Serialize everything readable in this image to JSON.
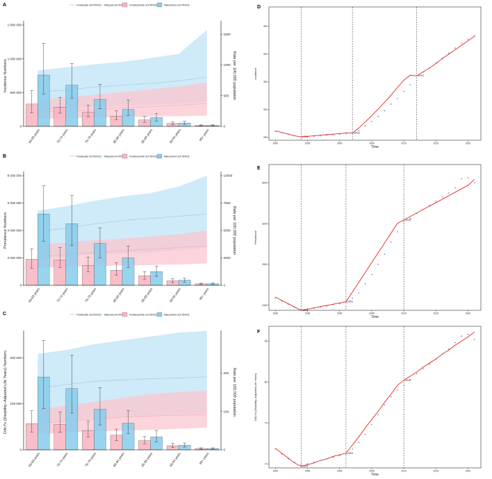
{
  "colors": {
    "female": "#f9b3bf",
    "male": "#87cdec",
    "female_band": "#fbc6cf",
    "male_band": "#bfe3f5",
    "fit_line": "#e8231f",
    "axis": "#333333",
    "point": "#5b6fb4"
  },
  "legend_labels": [
    "Female(rate and 95%UI)",
    "Male(rate and 95%UI)",
    "Female(number and 95%UI)",
    "Male(number and 95%UI)"
  ],
  "chart_data": [
    {
      "panel": "A",
      "type": "bar",
      "categories": [
        "65-69 years",
        "70-74 years",
        "75-79 years",
        "80-84 years",
        "85-89 years",
        "90-94 years",
        "95+ years"
      ],
      "ylabel": "Incidence Numbers",
      "y2label": "Rate per 100,000 population",
      "ylim": [
        0,
        1500000
      ],
      "yticks": [
        0,
        500000,
        1000000,
        1500000
      ],
      "yticklabels": [
        "0",
        "500 000",
        "1 000 000",
        "1 500 000"
      ],
      "y2lim": [
        0,
        1650
      ],
      "y2ticks": [
        0,
        500,
        1000,
        1500
      ],
      "series": [
        {
          "name": "Female(number and 95%UI)",
          "values": [
            330000,
            285000,
            210000,
            150000,
            95000,
            45000,
            15000
          ],
          "lower": [
            200000,
            195000,
            140000,
            100000,
            60000,
            25000,
            8000
          ],
          "upper": [
            530000,
            430000,
            310000,
            230000,
            145000,
            65000,
            22000
          ]
        },
        {
          "name": "Male(number and 95%UI)",
          "values": [
            760000,
            610000,
            400000,
            250000,
            130000,
            50000,
            15000
          ],
          "lower": [
            480000,
            420000,
            260000,
            160000,
            80000,
            30000,
            8000
          ],
          "upper": [
            1230000,
            930000,
            620000,
            390000,
            190000,
            75000,
            25000
          ]
        },
        {
          "name": "Female(rate and 95%UI)",
          "values": [
            230,
            255,
            275,
            300,
            320,
            345,
            370
          ],
          "lower": [
            120,
            135,
            145,
            150,
            160,
            165,
            175
          ],
          "upper": [
            430,
            470,
            510,
            560,
            600,
            650,
            710
          ]
        },
        {
          "name": "Male(rate and 95%UI)",
          "values": [
            560,
            590,
            640,
            670,
            700,
            740,
            800
          ],
          "lower": [
            250,
            280,
            310,
            330,
            350,
            370,
            400
          ],
          "upper": [
            910,
            960,
            1010,
            1050,
            1110,
            1180,
            1570
          ]
        }
      ]
    },
    {
      "panel": "B",
      "type": "bar",
      "categories": [
        "65-69 years",
        "70-74 years",
        "75-79 years",
        "80-84 years",
        "85-89 years",
        "90-94 years",
        "95+ years"
      ],
      "ylabel": "Prevalence Numbers",
      "y2label": "Rate per 100,000 population",
      "ylim": [
        0,
        8000000
      ],
      "yticks": [
        0,
        2000000,
        4000000,
        6000000,
        8000000
      ],
      "yticklabels": [
        "0",
        "2 000 000",
        "4 000 000",
        "6 000 000",
        "8 000 000"
      ],
      "y2lim": [
        0,
        10000
      ],
      "y2ticks": [
        0,
        2500,
        5000,
        7500,
        10000
      ],
      "series": [
        {
          "name": "Female(number and 95%UI)",
          "values": [
            1900000,
            1850000,
            1450000,
            1100000,
            700000,
            330000,
            110000
          ],
          "lower": [
            1250000,
            1300000,
            1000000,
            750000,
            450000,
            200000,
            60000
          ],
          "upper": [
            2650000,
            2750000,
            2050000,
            1650000,
            1000000,
            480000,
            160000
          ]
        },
        {
          "name": "Male(number and 95%UI)",
          "values": [
            5200000,
            4500000,
            3050000,
            2000000,
            1000000,
            380000,
            120000
          ],
          "lower": [
            3200000,
            2900000,
            2000000,
            1300000,
            650000,
            230000,
            70000
          ],
          "upper": [
            7250000,
            6550000,
            4200000,
            2850000,
            1400000,
            520000,
            170000
          ]
        },
        {
          "name": "Female(rate and 95%UI)",
          "values": [
            2600,
            2800,
            3000,
            3150,
            3300,
            3450,
            3600
          ],
          "lower": [
            1600,
            1700,
            1750,
            1800,
            1850,
            1900,
            2000
          ],
          "upper": [
            3700,
            3900,
            4100,
            4250,
            4450,
            4650,
            5000
          ]
        },
        {
          "name": "Male(rate and 95%UI)",
          "values": [
            4900,
            5200,
            5600,
            5900,
            6100,
            6300,
            6500
          ],
          "lower": [
            2300,
            2600,
            2800,
            2900,
            3000,
            3200,
            3400
          ],
          "upper": [
            6800,
            7200,
            7700,
            8100,
            8400,
            9000,
            10000
          ]
        }
      ]
    },
    {
      "panel": "C",
      "type": "bar",
      "categories": [
        "65-69 years",
        "70-74 years",
        "75-79 years",
        "80-84 years",
        "85-89 years",
        "90-94 years",
        "95+ years"
      ],
      "ylabel": "DALYs (Disability–Adjusted Life Years) Numbers",
      "y2label": "Rate per 100,000 population",
      "ylim": [
        0,
        250000
      ],
      "yticks": [
        0,
        100000,
        200000
      ],
      "yticklabels": [
        "0",
        "100 000",
        "200 000"
      ],
      "y2lim": [
        0,
        300
      ],
      "y2ticks": [
        0,
        100,
        200
      ],
      "series": [
        {
          "name": "Female(number and 95%UI)",
          "values": [
            57000,
            55000,
            42000,
            32000,
            20000,
            9000,
            3000
          ],
          "lower": [
            38000,
            38000,
            28000,
            20000,
            13000,
            5000,
            1500
          ],
          "upper": [
            85000,
            82000,
            62000,
            45000,
            29000,
            14000,
            4500
          ]
        },
        {
          "name": "Male(number and 95%UI)",
          "values": [
            158000,
            133000,
            88000,
            58000,
            28000,
            10000,
            3000
          ],
          "lower": [
            90000,
            80000,
            54000,
            35000,
            17000,
            6000,
            1500
          ],
          "upper": [
            237000,
            205000,
            135000,
            85000,
            42000,
            15000,
            4500
          ]
        },
        {
          "name": "Female(rate and 95%UI)",
          "values": [
            68,
            75,
            80,
            85,
            88,
            90,
            92
          ],
          "lower": [
            40,
            45,
            48,
            50,
            52,
            55,
            58
          ],
          "upper": [
            105,
            115,
            125,
            135,
            145,
            150,
            155
          ]
        },
        {
          "name": "Male(rate and 95%UI)",
          "values": [
            160,
            170,
            178,
            182,
            185,
            187,
            190
          ],
          "lower": [
            70,
            75,
            82,
            85,
            88,
            92,
            95
          ],
          "upper": [
            250,
            260,
            275,
            285,
            295,
            305,
            310
          ]
        }
      ]
    },
    {
      "panel": "D",
      "type": "line",
      "xlabel": "Time",
      "ylabel": "Incidence",
      "xlim": [
        1989,
        2022
      ],
      "xticks": [
        1990,
        1995,
        2000,
        2005,
        2010,
        2015,
        2020
      ],
      "ylim": [
        245,
        485
      ],
      "yticks": [
        250,
        300,
        350,
        400,
        450
      ],
      "breakpoints": [
        1994,
        2002,
        2012
      ],
      "x": [
        1990,
        1991,
        1992,
        1993,
        1994,
        1995,
        1996,
        1997,
        1998,
        1999,
        2000,
        2001,
        2002,
        2003,
        2004,
        2005,
        2006,
        2007,
        2008,
        2009,
        2010,
        2011,
        2012,
        2013,
        2014,
        2015,
        2016,
        2017,
        2018,
        2019,
        2020,
        2021
      ],
      "y": [
        261,
        259,
        256,
        253,
        251,
        251,
        252,
        253,
        254,
        255,
        256,
        257,
        258,
        262,
        271,
        279,
        288,
        298,
        310,
        320,
        333,
        345,
        361,
        368,
        375,
        384,
        393,
        402,
        411,
        420,
        427,
        433
      ],
      "fit": [
        262,
        259,
        256,
        253,
        251,
        252,
        253,
        254,
        255,
        256,
        257,
        258,
        258,
        267,
        278,
        289,
        301,
        313,
        326,
        340,
        353,
        362,
        361,
        368,
        375,
        383,
        392,
        400,
        408,
        416,
        424,
        432
      ]
    },
    {
      "panel": "E",
      "type": "line",
      "xlabel": "Time",
      "ylabel": "Prevalence",
      "xlim": [
        1989,
        2022
      ],
      "xticks": [
        1990,
        1995,
        2000,
        2005,
        2010,
        2015,
        2020
      ],
      "ylim": [
        2350,
        3780
      ],
      "yticks": [
        2400,
        2800,
        3200,
        3600
      ],
      "breakpoints": [
        1994,
        2001,
        2010
      ],
      "x": [
        1990,
        1991,
        1992,
        1993,
        1994,
        1995,
        1996,
        1997,
        1998,
        1999,
        2000,
        2001,
        2002,
        2003,
        2004,
        2005,
        2006,
        2007,
        2008,
        2009,
        2010,
        2011,
        2012,
        2013,
        2014,
        2015,
        2016,
        2017,
        2018,
        2019,
        2020,
        2021
      ],
      "y": [
        2470,
        2440,
        2410,
        2380,
        2355,
        2360,
        2370,
        2380,
        2390,
        2405,
        2415,
        2430,
        2470,
        2520,
        2610,
        2700,
        2800,
        2900,
        3020,
        3120,
        3220,
        3250,
        3300,
        3340,
        3380,
        3420,
        3460,
        3500,
        3550,
        3640,
        3650,
        3600
      ],
      "fit": [
        2480,
        2447,
        2415,
        2382,
        2350,
        2362,
        2374,
        2386,
        2398,
        2410,
        2422,
        2434,
        2530,
        2626,
        2722,
        2818,
        2914,
        3010,
        3106,
        3202,
        3236,
        3270,
        3304,
        3338,
        3372,
        3406,
        3440,
        3474,
        3508,
        3542,
        3576,
        3634
      ]
    },
    {
      "panel": "F",
      "type": "line",
      "xlabel": "Time",
      "ylabel": "DALYs (Disability–Adjusted Life Years)",
      "xlim": [
        1989,
        2022
      ],
      "xticks": [
        1990,
        1995,
        2000,
        2005,
        2010,
        2015,
        2020
      ],
      "ylim": [
        69.5,
        86.8
      ],
      "yticks": [
        70,
        75,
        80,
        85
      ],
      "breakpoints": [
        1994,
        2001,
        2010
      ],
      "x": [
        1990,
        1991,
        1992,
        1993,
        1994,
        1995,
        1996,
        1997,
        1998,
        1999,
        2000,
        2001,
        2002,
        2003,
        2004,
        2005,
        2006,
        2007,
        2008,
        2009,
        2010,
        2011,
        2012,
        2013,
        2014,
        2015,
        2016,
        2017,
        2018,
        2019,
        2020,
        2021
      ],
      "y": [
        71.8,
        71.2,
        70.6,
        70.2,
        69.9,
        70.0,
        70.2,
        70.4,
        70.6,
        70.8,
        71.0,
        71.2,
        71.8,
        72.6,
        73.6,
        74.8,
        76.0,
        77.2,
        78.2,
        79.0,
        79.6,
        80.3,
        81.0,
        81.6,
        82.2,
        82.8,
        83.4,
        84.0,
        84.8,
        85.6,
        85.8,
        85.2
      ],
      "fit": [
        71.9,
        71.3,
        70.7,
        70.1,
        69.7,
        69.9,
        70.1,
        70.4,
        70.6,
        70.9,
        71.1,
        71.3,
        72.3,
        73.3,
        74.4,
        75.4,
        76.4,
        77.5,
        78.5,
        79.6,
        80.2,
        80.7,
        81.2,
        81.8,
        82.3,
        82.8,
        83.4,
        83.9,
        84.5,
        85.0,
        85.5,
        86.1
      ]
    }
  ]
}
